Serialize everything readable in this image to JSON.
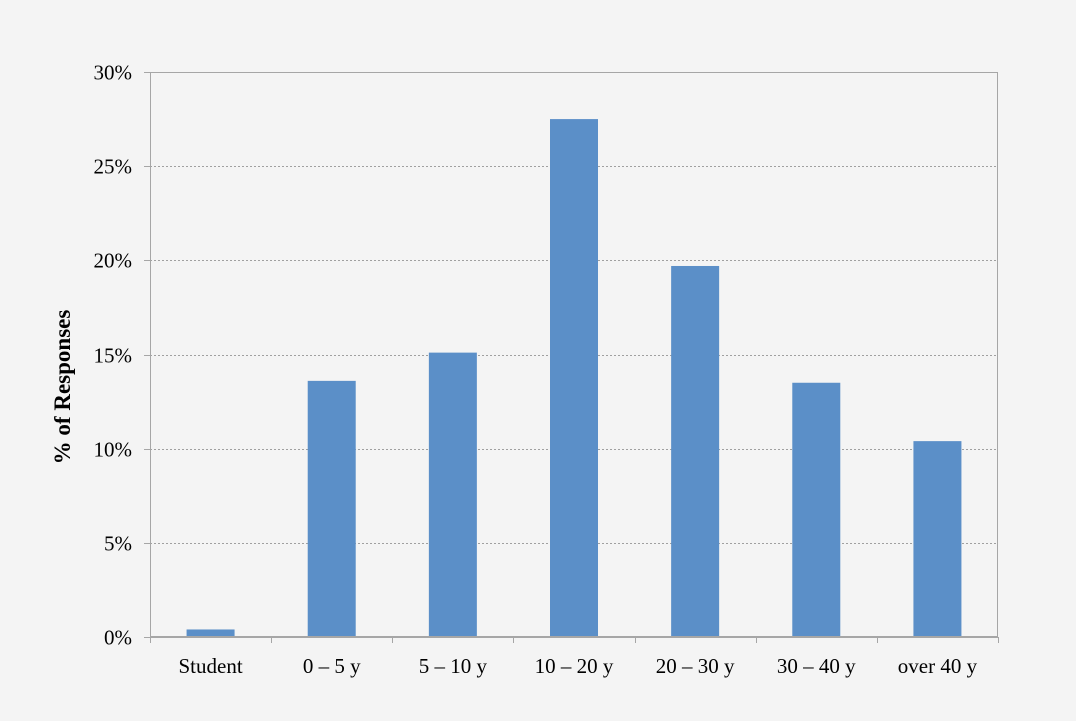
{
  "chart_data": {
    "type": "bar",
    "title": "",
    "xlabel": "",
    "ylabel": "% of Responses",
    "categories": [
      "Student",
      "0 – 5 y",
      "5 – 10 y",
      "10 – 20 y",
      "20 – 30 y",
      "30 – 40 y",
      "over 40 y"
    ],
    "values": [
      0.4,
      13.6,
      15.1,
      27.5,
      19.7,
      13.5,
      10.4
    ],
    "ylim": [
      0,
      30
    ],
    "yticks": [
      0,
      5,
      10,
      15,
      20,
      25,
      30
    ],
    "ytick_labels": [
      "0%",
      "5%",
      "10%",
      "15%",
      "20%",
      "25%",
      "30%"
    ],
    "grid": "horizontal dotted",
    "legend": "none",
    "colors": {
      "bar": "#5b8fc8",
      "background": "#f4f4f4",
      "plot_background": "#f4f4f4",
      "axis": "#a6a6a6",
      "grid": "#a0a0a0"
    }
  }
}
